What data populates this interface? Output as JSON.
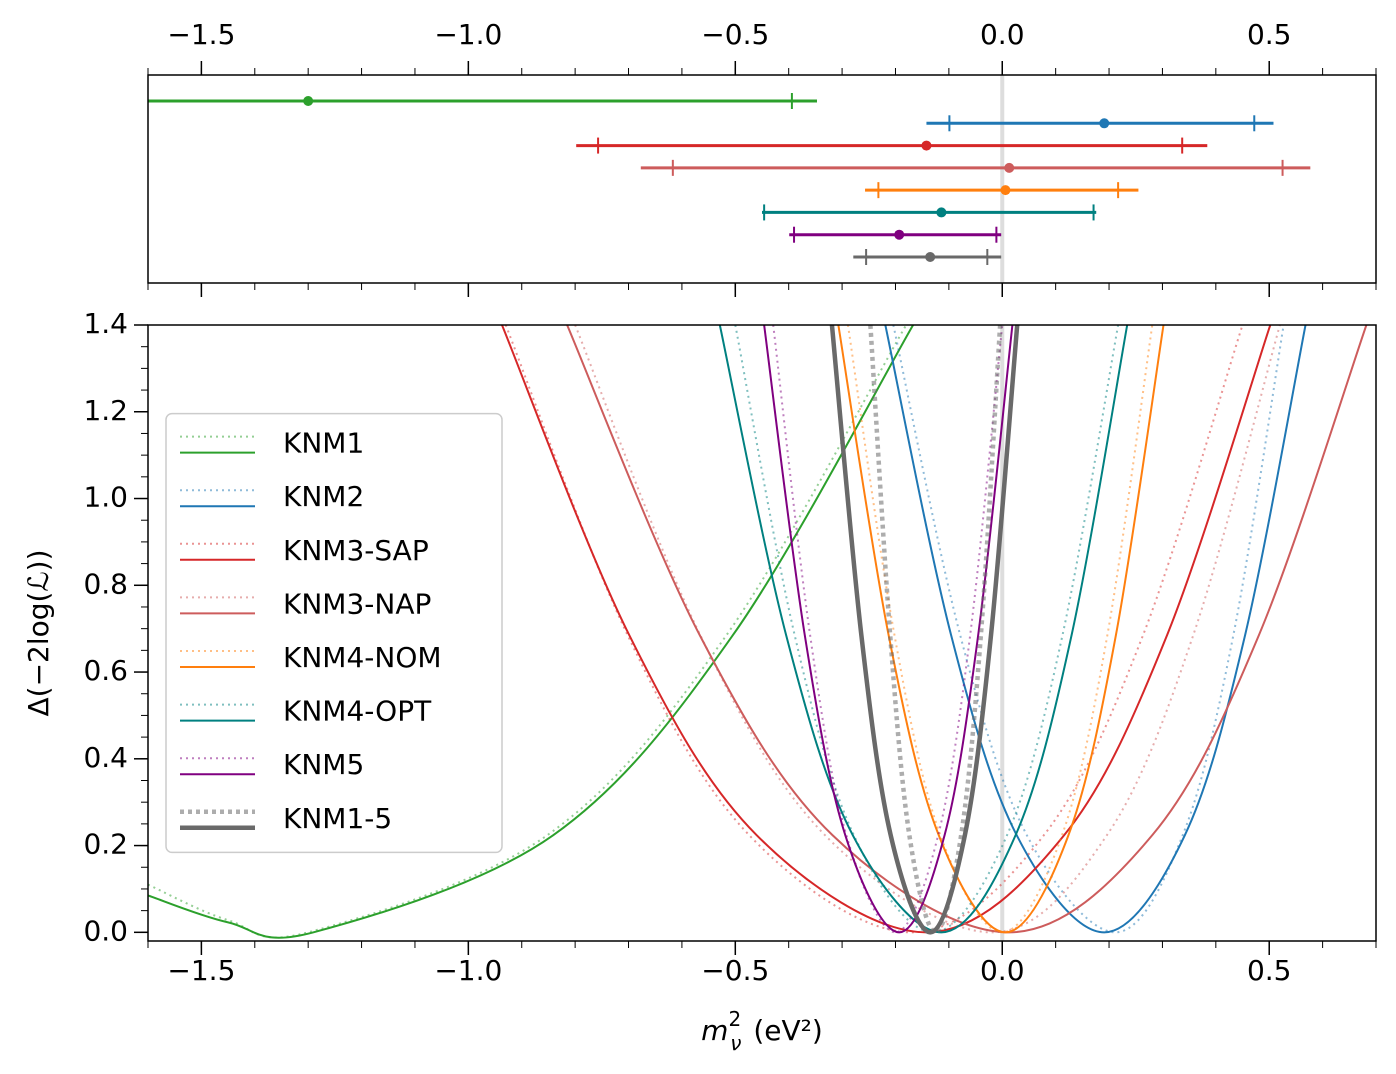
{
  "chart_data": [
    {
      "type": "interval",
      "xlim": [
        -1.6,
        0.7
      ],
      "xticks": [
        {
          "value": -1.5,
          "label": "−1.5"
        },
        {
          "value": -1.0,
          "label": "−1.0"
        },
        {
          "value": -0.5,
          "label": "−0.5"
        },
        {
          "value": 0,
          "label": "0.0"
        },
        0.5
      ],
      "xminorticks": [
        -1.6,
        -1.5,
        -1.4,
        -1.3,
        -1.2,
        -1.1,
        -1.0,
        -0.9,
        -0.8,
        -0.7,
        -0.6,
        -0.5,
        -0.4,
        -0.3,
        -0.2,
        -0.1,
        0,
        0.1,
        0.2,
        0.3,
        0.4,
        0.5,
        0.6,
        0.7
      ],
      "vline": 0,
      "series": [
        {
          "color": "#2ca02c",
          "best": -1.3,
          "ticks": [
            null,
            -0.394
          ],
          "range": [
            null,
            -0.347
          ]
        },
        {
          "color": "#1f77b4",
          "best": 0.191,
          "ticks": [
            -0.099,
            0.472
          ],
          "range": [
            -0.142,
            0.508
          ]
        },
        {
          "color": "#d62728",
          "best": -0.142,
          "ticks": [
            -0.757,
            0.337
          ],
          "range": [
            -0.798,
            0.384
          ]
        },
        {
          "color": "#cd5c5c",
          "best": 0.013,
          "ticks": [
            -0.617,
            0.525
          ],
          "range": [
            -0.677,
            0.577
          ]
        },
        {
          "color": "#ff7f0e",
          "best": 0.006,
          "ticks": [
            -0.232,
            0.217
          ],
          "range": [
            -0.257,
            0.255
          ]
        },
        {
          "color": "#008080",
          "best": -0.114,
          "ticks": [
            -0.446,
            0.171
          ],
          "range": [
            -0.45,
            0.176
          ]
        },
        {
          "color": "#800080",
          "best": -0.193,
          "ticks": [
            -0.39,
            -0.011
          ],
          "range": [
            -0.399,
            -0.002
          ]
        },
        {
          "color": "#696969",
          "best": -0.135,
          "ticks": [
            -0.255,
            -0.028
          ],
          "range": [
            -0.279,
            -0.002
          ]
        }
      ]
    },
    {
      "type": "line",
      "xlabel": {
        "symbol": "m",
        "subscript": "ν",
        "superscript": "2",
        "unit": "(eV²)"
      },
      "ylabel": "Δ(−2log(ℒ))",
      "xlim": [
        -1.6,
        0.7
      ],
      "ylim": [
        -0.02,
        1.4
      ],
      "xticks": [
        {
          "value": -1.5,
          "label": "−1.5"
        },
        {
          "value": -1.0,
          "label": "−1.0"
        },
        {
          "value": -0.5,
          "label": "−0.5"
        },
        {
          "value": 0,
          "label": "0.0"
        },
        0.5
      ],
      "xminorticks": [
        -1.6,
        -1.5,
        -1.4,
        -1.3,
        -1.2,
        -1.1,
        -1.0,
        -0.9,
        -0.8,
        -0.7,
        -0.6,
        -0.5,
        -0.4,
        -0.3,
        -0.2,
        -0.1,
        0,
        0.1,
        0.2,
        0.3,
        0.4,
        0.5,
        0.6,
        0.7
      ],
      "yticks": [
        {
          "value": 0,
          "label": "0.0"
        },
        0.2,
        0.4,
        0.6,
        0.8,
        {
          "value": 1.0,
          "label": "1.0"
        },
        1.2,
        1.4
      ],
      "yminorticks": [
        0,
        0.05,
        0.1,
        0.15,
        0.2,
        0.25,
        0.3,
        0.35,
        0.4,
        0.45,
        0.5,
        0.55,
        0.6,
        0.65,
        0.7,
        0.75,
        0.8,
        0.85,
        0.9,
        0.95,
        1.0,
        1.05,
        1.1,
        1.15,
        1.2,
        1.25,
        1.3,
        1.35,
        1.4
      ],
      "vline": 0,
      "legend": "center left",
      "series": [
        {
          "name": "KNM1",
          "color": "#2ca02c",
          "dotted": {
            "x": [
              -1.6,
              -1.45,
              -1.3,
              -0.852,
              -0.516,
              -0.18
            ],
            "values": [
              0.11,
              0.028,
              0,
              0.224,
              0.686,
              1.4
            ]
          },
          "solid": {
            "x": [
              -1.6,
              -1.45,
              -1.29,
              -0.841,
              -0.504,
              -0.167
            ],
            "values": [
              0.085,
              0.023,
              0,
              0.224,
              0.686,
              1.4
            ]
          }
        },
        {
          "name": "KNM2",
          "color": "#1f77b4",
          "dotted": {
            "x": [
              -0.204,
              -0.079,
              0.046,
              0.212,
              0.338,
              0.433,
              0.527
            ],
            "values": [
              1.4,
              0.686,
              0.224,
              0,
              0.224,
              0.686,
              1.4
            ]
          },
          "solid": {
            "x": [
              -0.219,
              -0.096,
              0.027,
              0.191,
              0.342,
              0.455,
              0.568
            ],
            "values": [
              1.4,
              0.686,
              0.224,
              0,
              0.224,
              0.686,
              1.4
            ]
          }
        },
        {
          "name": "KNM3-SAP",
          "color": "#d62728",
          "dotted": {
            "x": [
              -0.93,
              -0.702,
              -0.474,
              -0.17,
              0.078,
              0.264,
              0.45
            ],
            "values": [
              1.4,
              0.686,
              0.224,
              0,
              0.224,
              0.686,
              1.4
            ]
          },
          "solid": {
            "x": [
              -0.937,
              -0.699,
              -0.46,
              -0.142,
              0.116,
              0.309,
              0.502
            ],
            "values": [
              1.4,
              0.686,
              0.224,
              0,
              0.224,
              0.686,
              1.4
            ]
          }
        },
        {
          "name": "KNM3-NAP",
          "color": "#cd5c5c",
          "dotted": {
            "x": [
              -0.8,
              -0.566,
              -0.332,
              -0.02,
              0.196,
              0.358,
              0.52
            ],
            "values": [
              1.4,
              0.686,
              0.224,
              0,
              0.224,
              0.686,
              1.4
            ]
          },
          "solid": {
            "x": [
              -0.815,
              -0.567,
              -0.318,
              0.013,
              0.281,
              0.481,
              0.682
            ],
            "values": [
              1.4,
              0.686,
              0.224,
              0,
              0.224,
              0.686,
              1.4
            ]
          }
        },
        {
          "name": "KNM4-NOM",
          "color": "#ff7f0e",
          "dotted": {
            "x": [
              -0.289,
              -0.202,
              -0.116,
              0,
              0.112,
              0.197,
              0.281
            ],
            "values": [
              1.4,
              0.686,
              0.224,
              0,
              0.224,
              0.686,
              1.4
            ]
          },
          "solid": {
            "x": [
              -0.307,
              -0.213,
              -0.119,
              0.006,
              0.124,
              0.213,
              0.302
            ],
            "values": [
              1.4,
              0.686,
              0.224,
              0,
              0.224,
              0.686,
              1.4
            ]
          }
        },
        {
          "name": "KNM4-OPT",
          "color": "#008080",
          "dotted": {
            "x": [
              -0.5,
              -0.389,
              -0.278,
              -0.13,
              0.009,
              0.113,
              0.217
            ],
            "values": [
              1.4,
              0.686,
              0.224,
              0,
              0.224,
              0.686,
              1.4
            ]
          },
          "solid": {
            "x": [
              -0.529,
              -0.405,
              -0.28,
              -0.114,
              0.025,
              0.13,
              0.234
            ],
            "values": [
              1.4,
              0.686,
              0.224,
              0,
              0.224,
              0.686,
              1.4
            ]
          }
        },
        {
          "name": "KNM5",
          "color": "#800080",
          "dotted": {
            "x": [
              -0.429,
              -0.36,
              -0.292,
              -0.2,
              -0.12,
              -0.06,
              0
            ],
            "values": [
              1.4,
              0.686,
              0.224,
              0,
              0.224,
              0.686,
              1.4
            ]
          },
          "solid": {
            "x": [
              -0.446,
              -0.37,
              -0.294,
              -0.193,
              -0.108,
              -0.045,
              0.019
            ],
            "values": [
              1.4,
              0.686,
              0.224,
              0,
              0.224,
              0.686,
              1.4
            ]
          }
        },
        {
          "name": "KNM1-5",
          "color": "#696969",
          "bold": true,
          "dotted": {
            "x": [
              -0.247,
              -0.21,
              -0.174,
              -0.125,
              -0.077,
              -0.04,
              -0.004
            ],
            "values": [
              1.4,
              0.686,
              0.224,
              0,
              0.224,
              0.686,
              1.4
            ]
          },
          "solid": {
            "x": [
              -0.319,
              -0.264,
              -0.209,
              -0.135,
              -0.07,
              -0.021,
              0.028
            ],
            "values": [
              1.4,
              0.686,
              0.224,
              0,
              0.224,
              0.686,
              1.4
            ]
          }
        }
      ]
    }
  ]
}
